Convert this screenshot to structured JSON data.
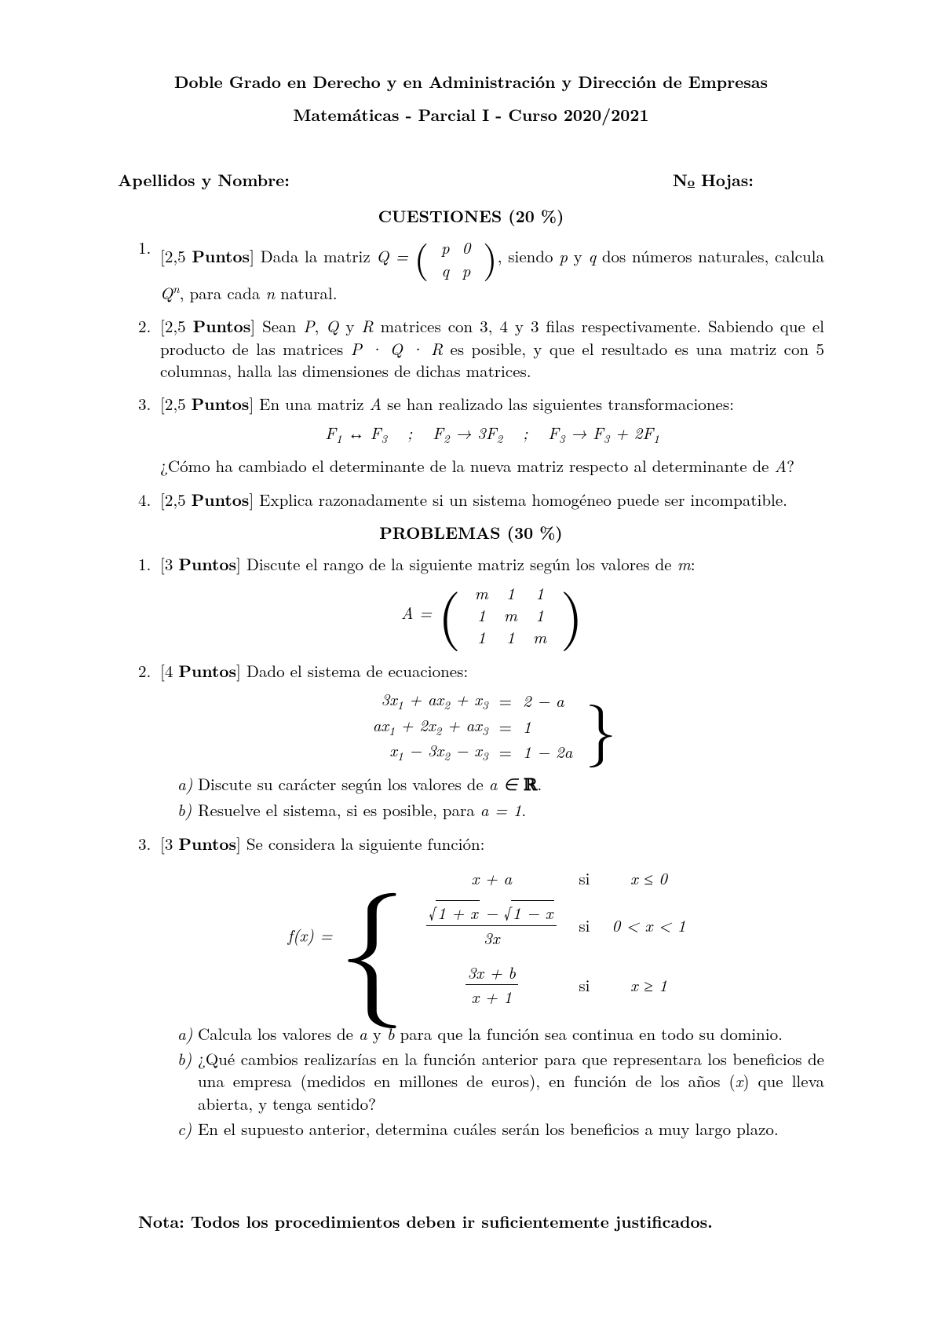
{
  "header": {
    "line1": "Doble Grado en Derecho y en Administración y Dirección de Empresas",
    "line2": "Matemáticas - Parcial I - Curso 2020/2021"
  },
  "name_row": {
    "left": "Apellidos y Nombre:",
    "right_prefix": "N",
    "right_suffix": " Hojas:"
  },
  "sections": {
    "cuestiones_title": "CUESTIONES (20 %)",
    "problemas_title": "PROBLEMAS (30 %)"
  },
  "cuestiones": [
    {
      "num": "1.",
      "points": "[2,5 Puntos]",
      "pre": " Dada la matriz ",
      "matrix_label": "Q =",
      "matrix": [
        [
          "p",
          "0"
        ],
        [
          "q",
          "p"
        ]
      ],
      "post1": ", siendo ",
      "var1": "p",
      "mid1": " y ",
      "var2": "q",
      "post2": " dos números naturales, calcula ",
      "expr": "Q",
      "expr_sup": "n",
      "post3": ", para cada ",
      "var3": "n",
      "post4": " natural."
    },
    {
      "num": "2.",
      "points": "[2,5 Puntos]",
      "t1": " Sean ",
      "v1": "P",
      "t2": ", ",
      "v2": "Q",
      "t3": " y ",
      "v3": "R",
      "t4": " matrices con 3, 4 y 3 filas respectivamente. Sabiendo que el producto de las matrices ",
      "expr": "P · Q · R",
      "t5": " es posible, y que el resultado es una matriz con 5 columnas, halla las dimensiones de dichas matrices."
    },
    {
      "num": "3.",
      "points": "[2,5 Puntos]",
      "t1": " En una matriz ",
      "v1": "A",
      "t2": " se han realizado las siguientes transformaciones:",
      "display": "F₁ ↔ F₃   ;   F₂ → 3F₂   ;   F₃ → F₃ + 2F₁",
      "t3": "¿Cómo ha cambiado el determinante de la nueva matriz respecto al determinante de ",
      "v2": "A",
      "t4": "?"
    },
    {
      "num": "4.",
      "points": "[2,5 Puntos]",
      "text": " Explica razonadamente si un sistema homogéneo puede ser incompatible."
    }
  ],
  "problemas": [
    {
      "num": "1.",
      "points": "[3 Puntos]",
      "t1": " Discute el rango de la siguiente matriz según los valores de ",
      "v1": "m",
      "t2": ":",
      "matrix_label": "A =",
      "matrix": [
        [
          "m",
          "1",
          "1"
        ],
        [
          "1",
          "m",
          "1"
        ],
        [
          "1",
          "1",
          "m"
        ]
      ]
    },
    {
      "num": "2.",
      "points": "[4 Puntos]",
      "t1": " Dado el sistema de ecuaciones:",
      "system_rows": [
        {
          "lhs": "3x₁ + ax₂ + x₃",
          "rhs": "2 − a"
        },
        {
          "lhs": "ax₁ + 2x₂ + ax₃",
          "rhs": "1"
        },
        {
          "lhs": "x₁ − 3x₂ − x₃",
          "rhs": "1 − 2a"
        }
      ],
      "sub": [
        {
          "let": "a)",
          "t1": "Discute su carácter según los valores de ",
          "v1": "a ∈ ",
          "t2": "."
        },
        {
          "let": "b)",
          "t1": "Resuelve el sistema, si es posible, para ",
          "v1": "a = 1",
          "t2": "."
        }
      ]
    },
    {
      "num": "3.",
      "points": "[3 Puntos]",
      "t1": " Se considera la siguiente función:",
      "piecewise_label": "f(x) =",
      "piecewise": {
        "row1": {
          "expr": "x + a",
          "cond": "x ≤ 0"
        },
        "row2": {
          "frac_num_a": "1 + x",
          "frac_num_b": "1 − x",
          "frac_den": "3x",
          "cond": "0 < x < 1"
        },
        "row3": {
          "frac_num": "3x + b",
          "frac_den": "x + 1",
          "cond": "x ≥ 1"
        }
      },
      "sub": [
        {
          "let": "a)",
          "text": "Calcula los valores de a y b para que la función sea continua en todo su dominio."
        },
        {
          "let": "b)",
          "text": "¿Qué cambios realizarías en la función anterior para que representara los beneficios de una empresa (medidos en millones de euros), en función de los años (x) que lleva abierta, y tenga sentido?"
        },
        {
          "let": "c)",
          "text": "En el supuesto anterior, determina cuáles serán los beneficios a muy largo plazo."
        }
      ]
    }
  ],
  "note": "Nota: Todos los procedimientos deben ir suficientemente justificados.",
  "si_label": "si"
}
